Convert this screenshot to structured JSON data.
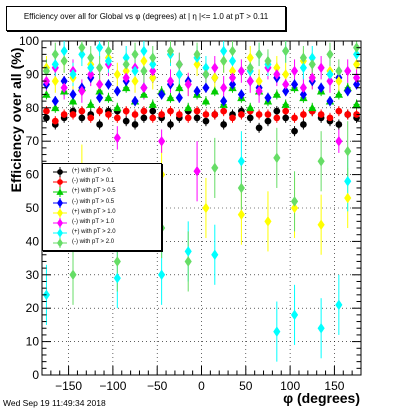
{
  "page": {
    "title": "Efficiency over all for Global vs φ (degrees) at | η |<= 1.0 at pT > 0.11",
    "timestamp": "Wed Sep 19 11:49:34 2018"
  },
  "chart_data": {
    "type": "scatter",
    "title": "Efficiency over all for Global vs φ (degrees) at | η |<= 1.0 at pT > 0.11",
    "xlabel": "φ (degrees)",
    "ylabel": "Efficiency over all (%)",
    "xlim": [
      -180,
      180
    ],
    "ylim": [
      0,
      100
    ],
    "x_ticks": [
      -150,
      -100,
      -50,
      0,
      50,
      100,
      150
    ],
    "x_tick_labels": [
      "−150",
      "−100",
      "−50",
      "0",
      "50",
      "100",
      "150"
    ],
    "y_ticks": [
      0,
      10,
      20,
      30,
      40,
      50,
      60,
      70,
      80,
      90,
      100
    ],
    "y_tick_labels": [
      "0",
      "10",
      "20",
      "30",
      "40",
      "50",
      "60",
      "70",
      "80",
      "90",
      "100"
    ],
    "grid": true,
    "legend_position": "middle-left",
    "x": [
      -175,
      -165,
      -155,
      -145,
      -135,
      -125,
      -115,
      -105,
      -95,
      -85,
      -75,
      -65,
      -55,
      -45,
      -35,
      -25,
      -15,
      -5,
      5,
      15,
      25,
      35,
      45,
      55,
      65,
      75,
      85,
      95,
      105,
      115,
      125,
      135,
      145,
      155,
      165,
      175
    ],
    "series": [
      {
        "name": "(+) with pT > 0.",
        "color": "#000000",
        "marker": "circle",
        "values": [
          77,
          75,
          77,
          79,
          77,
          78,
          75,
          79,
          79,
          76,
          75,
          77,
          79,
          77,
          75,
          77,
          79,
          77,
          76,
          78,
          75,
          78,
          79,
          77,
          74,
          76,
          79,
          77,
          73,
          75,
          79,
          77,
          76,
          75,
          78,
          77
        ]
      },
      {
        "name": "(-) with pT > 0.1",
        "color": "#ff0000",
        "marker": "circle",
        "values": [
          79,
          76,
          78,
          78,
          79,
          77,
          79,
          78,
          77,
          79,
          78,
          79,
          77,
          78,
          79,
          78,
          77,
          79,
          78,
          78,
          79,
          77,
          78,
          79,
          78,
          78,
          77,
          79,
          77,
          78,
          79,
          78,
          77,
          79,
          78,
          78
        ]
      },
      {
        "name": "(+) with pT > 0.5",
        "color": "#00cc00",
        "marker": "triangle",
        "values": [
          84,
          80,
          85,
          82,
          86,
          81,
          85,
          83,
          80,
          86,
          82,
          84,
          81,
          85,
          83,
          86,
          80,
          84,
          82,
          85,
          81,
          86,
          83,
          80,
          85,
          82,
          84,
          81,
          86,
          83,
          80,
          85,
          82,
          84,
          86,
          81
        ]
      },
      {
        "name": "(-) with pT > 0.5",
        "color": "#0000ff",
        "marker": "diamond",
        "values": [
          87,
          82,
          88,
          84,
          86,
          89,
          83,
          87,
          85,
          88,
          82,
          86,
          89,
          84,
          87,
          83,
          88,
          85,
          86,
          89,
          82,
          87,
          84,
          88,
          86,
          83,
          89,
          85,
          87,
          84,
          88,
          86,
          82,
          89,
          85,
          87
        ]
      },
      {
        "name": "(+) with pT > 1.0",
        "color": "#ffff00",
        "marker": "diamond",
        "values": [
          92,
          88,
          94,
          89,
          60,
          93,
          87,
          95,
          90,
          91,
          88,
          94,
          89,
          60,
          96,
          90,
          87,
          93,
          50,
          89,
          94,
          91,
          48,
          95,
          88,
          46,
          92,
          90,
          50,
          94,
          89,
          45,
          91,
          88,
          53,
          93
        ]
      },
      {
        "name": "(-) with pT > 1.0",
        "color": "#ff00ff",
        "marker": "diamond",
        "values": [
          88,
          92,
          86,
          91,
          85,
          90,
          87,
          93,
          71,
          89,
          92,
          86,
          91,
          70,
          88,
          93,
          87,
          61,
          90,
          92,
          86,
          89,
          91,
          88,
          85,
          92,
          90,
          87,
          91,
          86,
          89,
          92,
          88,
          70,
          91,
          89
        ]
      },
      {
        "name": "(+) with pT > 2.0",
        "color": "#00ffff",
        "marker": "diamond",
        "values": [
          24,
          93,
          97,
          90,
          96,
          92,
          98,
          94,
          29,
          95,
          91,
          97,
          93,
          30,
          96,
          90,
          37,
          95,
          92,
          36,
          97,
          94,
          64,
          91,
          96,
          93,
          13,
          97,
          18,
          92,
          95,
          14,
          90,
          21,
          58,
          96
        ]
      },
      {
        "name": "(-) with pT > 2.0",
        "color": "#66dd66",
        "marker": "diamond",
        "values": [
          91,
          96,
          94,
          30,
          98,
          95,
          92,
          97,
          34,
          93,
          96,
          91,
          95,
          44,
          97,
          93,
          34,
          96,
          90,
          62,
          94,
          97,
          56,
          92,
          96,
          94,
          65,
          97,
          52,
          95,
          93,
          64,
          96,
          91,
          67,
          98
        ]
      }
    ]
  }
}
